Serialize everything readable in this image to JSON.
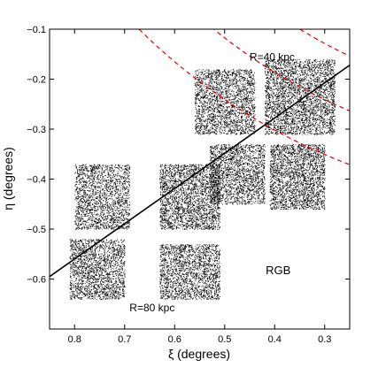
{
  "chart_data": {
    "type": "scatter",
    "title": "",
    "xlabel": "ξ (degrees)",
    "ylabel": "η (degrees)",
    "xlim": [
      0.85,
      0.25
    ],
    "ylim": [
      -0.7,
      -0.1
    ],
    "x_reversed": true,
    "grid": false,
    "x_ticks": [
      0.8,
      0.7,
      0.6,
      0.5,
      0.4,
      0.3
    ],
    "x_tick_labels": [
      "0.8",
      "0.7",
      "0.6",
      "0.5",
      "0.4",
      "0.3"
    ],
    "y_ticks": [
      -0.1,
      -0.2,
      -0.3,
      -0.4,
      -0.5,
      -0.6
    ],
    "y_tick_labels": [
      "−0.1",
      "−0.2",
      "−0.3",
      "−0.4",
      "−0.5",
      "−0.6"
    ],
    "annotations": [
      {
        "text": "R=40 kpc",
        "x": 0.405,
        "y": -0.163
      },
      {
        "text": "R=80 kpc",
        "x": 0.645,
        "y": -0.665
      },
      {
        "text": "RGB",
        "x": 0.393,
        "y": -0.59
      }
    ],
    "fields": [
      {
        "x_range": [
          0.56,
          0.44
        ],
        "y_range": [
          -0.18,
          -0.31
        ],
        "density": 2300
      },
      {
        "x_range": [
          0.42,
          0.28
        ],
        "y_range": [
          -0.16,
          -0.31
        ],
        "density": 3300
      },
      {
        "x_range": [
          0.8,
          0.69
        ],
        "y_range": [
          -0.37,
          -0.5
        ],
        "density": 2000
      },
      {
        "x_range": [
          0.63,
          0.51
        ],
        "y_range": [
          -0.37,
          -0.5
        ],
        "density": 2600
      },
      {
        "x_range": [
          0.53,
          0.42
        ],
        "y_range": [
          -0.33,
          -0.45
        ],
        "density": 2000
      },
      {
        "x_range": [
          0.41,
          0.3
        ],
        "y_range": [
          -0.33,
          -0.46
        ],
        "density": 2400
      },
      {
        "x_range": [
          0.81,
          0.7
        ],
        "y_range": [
          -0.52,
          -0.64
        ],
        "density": 2000
      },
      {
        "x_range": [
          0.63,
          0.51
        ],
        "y_range": [
          -0.53,
          -0.64
        ],
        "density": 2000
      }
    ],
    "major_axis_line": {
      "from": [
        0.85,
        -0.595
      ],
      "to": [
        0.25,
        -0.172
      ]
    },
    "dashed_arcs_center": [
      -0.18,
      0.76
    ],
    "dashed_arcs_radii": [
      0.61,
      0.71,
      0.81,
      0.91,
      1.01,
      1.11,
      1.21
    ],
    "solid_arc": {
      "center": [
        -0.18,
        0.76
      ],
      "radius": 0.535
    },
    "colors": {
      "points": "#000000",
      "contours": "#e60000",
      "axis_line": "#000000"
    }
  }
}
